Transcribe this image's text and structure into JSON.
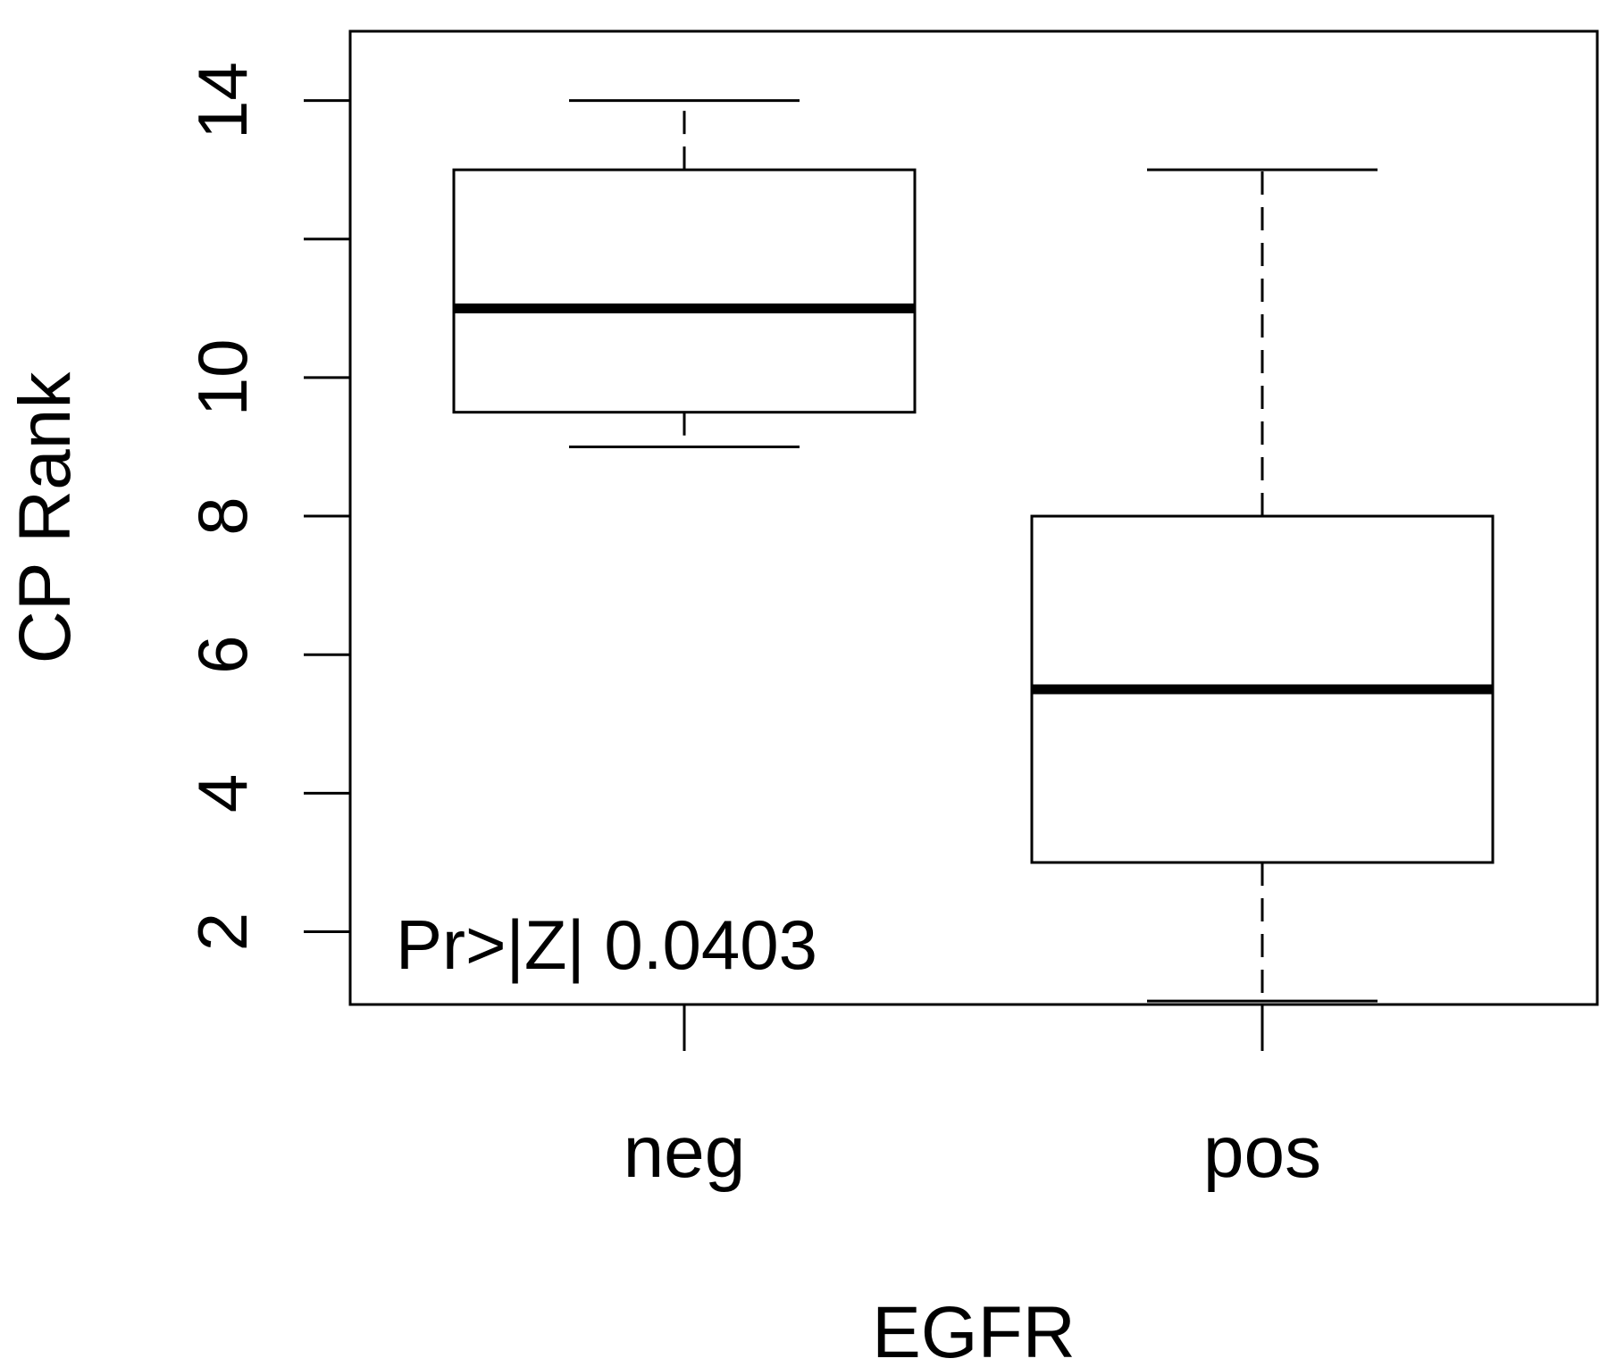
{
  "chart_data": {
    "type": "box",
    "title": "",
    "xlabel": "EGFR",
    "ylabel": "CP Rank",
    "ylim": [
      0.95,
      15
    ],
    "yticks": [
      2,
      4,
      6,
      8,
      10,
      12,
      14
    ],
    "ytick_labels": [
      "2",
      "4",
      "6",
      "8",
      "10",
      "",
      "14"
    ],
    "grid": false,
    "categories": [
      "neg",
      "pos"
    ],
    "boxes": [
      {
        "category": "neg",
        "whisker_low": 9,
        "q1": 9.5,
        "median": 11,
        "q3": 13,
        "whisker_high": 14
      },
      {
        "category": "pos",
        "whisker_low": 1,
        "q1": 3,
        "median": 5.5,
        "q3": 8,
        "whisker_high": 13
      }
    ],
    "annotations": [
      {
        "text": "Pr>|Z| 0.0403",
        "position": "bottom-left"
      }
    ]
  }
}
